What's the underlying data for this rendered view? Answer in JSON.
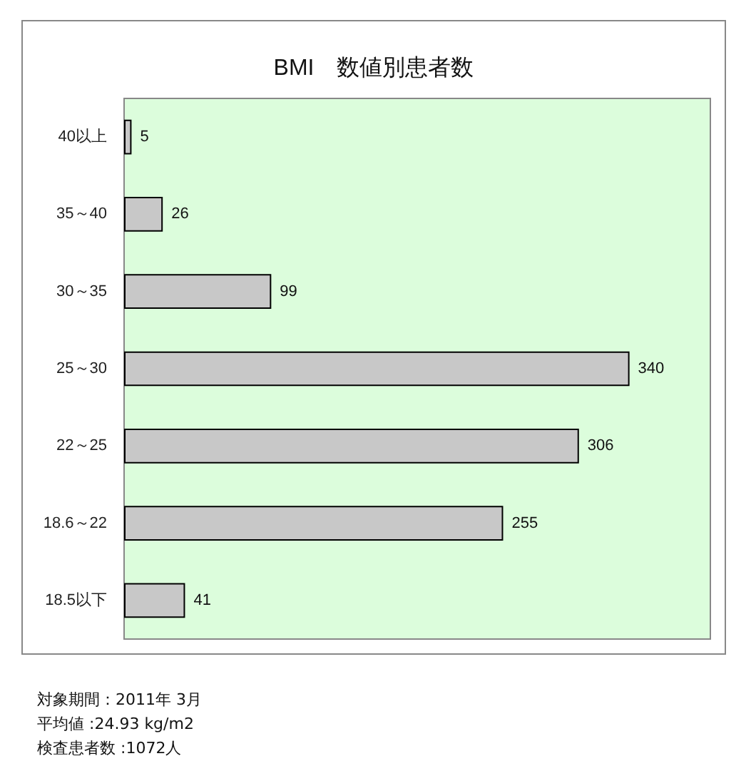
{
  "chart_data": {
    "type": "bar",
    "orientation": "horizontal",
    "title": "BMI　数値別患者数",
    "categories": [
      "40以上",
      "35～40",
      "30～35",
      "25～30",
      "22～25",
      "18.6～22",
      "18.5以下"
    ],
    "values": [
      5,
      26,
      99,
      340,
      306,
      255,
      41
    ],
    "color": "#c8c8c8",
    "data_labels": true,
    "grid": false,
    "tick_labels": "y",
    "annotations": [
      "対象期間：2011年 3月",
      "平均値 :24.93 kg/m2",
      "検査患者数 :1072人"
    ]
  }
}
